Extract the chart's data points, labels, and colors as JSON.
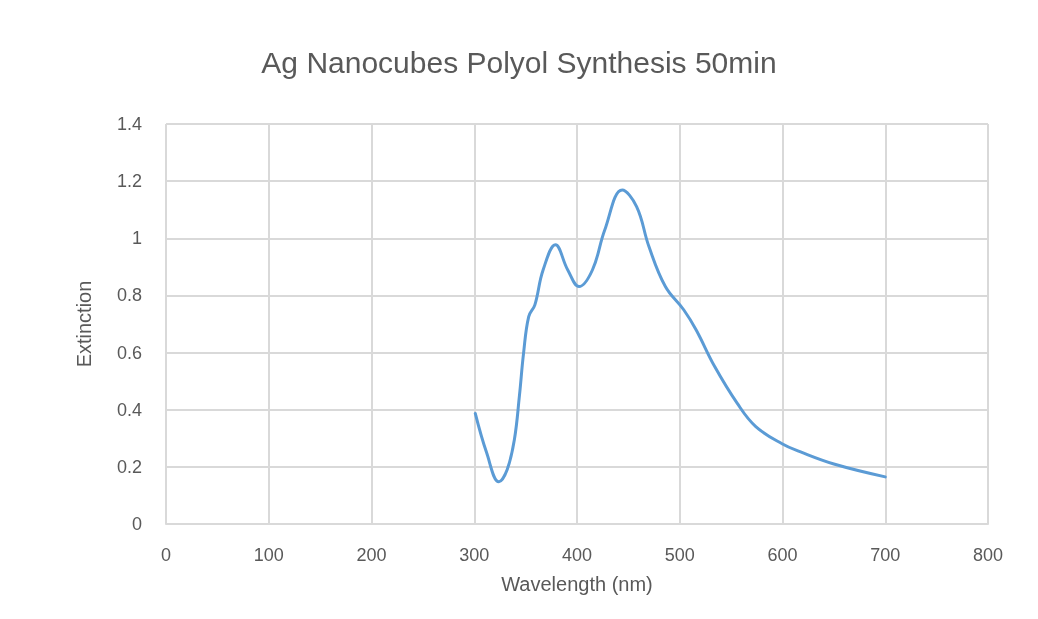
{
  "chart_data": {
    "type": "line",
    "title": "Ag Nanocubes Polyol Synthesis 50min",
    "xlabel": "Wavelength (nm)",
    "ylabel": "Extinction",
    "x": [
      301,
      312,
      324,
      332,
      339,
      344,
      348,
      353,
      359,
      367,
      379,
      391,
      402,
      415,
      427,
      444,
      458,
      470,
      486,
      504,
      516,
      534,
      556,
      574,
      600,
      617,
      650,
      700
    ],
    "series": [
      {
        "color": "#5b9bd5",
        "values": [
          0.387,
          0.25,
          0.148,
          0.19,
          0.294,
          0.45,
          0.598,
          0.726,
          0.767,
          0.889,
          0.977,
          0.889,
          0.831,
          0.889,
          1.029,
          1.169,
          1.111,
          0.971,
          0.831,
          0.749,
          0.679,
          0.551,
          0.422,
          0.341,
          0.28,
          0.253,
          0.21,
          0.165
        ]
      }
    ],
    "xlim": [
      0,
      800
    ],
    "xticks": [
      0,
      100,
      200,
      300,
      400,
      500,
      600,
      700,
      800
    ],
    "ylim": [
      0,
      1.4
    ],
    "yticks": [
      0,
      0.2,
      0.4,
      0.6,
      0.8,
      1,
      1.2,
      1.4
    ],
    "grid": true,
    "marker": "none",
    "line_style": "solid"
  }
}
